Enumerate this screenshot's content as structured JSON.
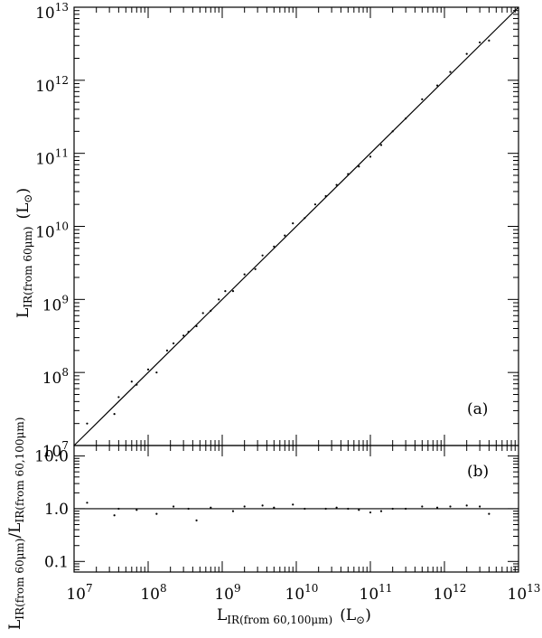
{
  "chart_data": [
    {
      "panel": "a",
      "type": "scatter",
      "tag": "(a)",
      "xscale": "log",
      "yscale": "log",
      "xlim": [
        10000000.0,
        10000000000000.0
      ],
      "ylim": [
        10000000.0,
        10000000000000.0
      ],
      "x_ticks_shown_on_shared_bottom_axis": true,
      "y_ticks": [
        {
          "value": 10000000.0,
          "base": "10",
          "exp": "7"
        },
        {
          "value": 100000000.0,
          "base": "10",
          "exp": "8"
        },
        {
          "value": 1000000000.0,
          "base": "10",
          "exp": "9"
        },
        {
          "value": 10000000000.0,
          "base": "10",
          "exp": "10"
        },
        {
          "value": 100000000000.0,
          "base": "10",
          "exp": "11"
        },
        {
          "value": 1000000000000.0,
          "base": "10",
          "exp": "12"
        },
        {
          "value": 10000000000000.0,
          "base": "10",
          "exp": "13"
        }
      ],
      "ylabel": {
        "main": "L",
        "sub": "IR(from 60μm)",
        "unit": "(L",
        "unit_sub": "⊙",
        "unit_close": ")"
      },
      "reference_line": {
        "kind": "one-to-one",
        "from": [
          10000000.0,
          10000000.0
        ],
        "to": [
          10000000000000.0,
          10000000000000.0
        ]
      },
      "grid": false,
      "points_approx": [
        [
          15000000.0,
          20000000.0
        ],
        [
          35000000.0,
          27000000.0
        ],
        [
          40000000.0,
          46000000.0
        ],
        [
          60000000.0,
          75000000.0
        ],
        [
          70000000.0,
          68000000.0
        ],
        [
          100000000.0,
          110000000.0
        ],
        [
          130000000.0,
          100000000.0
        ],
        [
          180000000.0,
          200000000.0
        ],
        [
          220000000.0,
          250000000.0
        ],
        [
          300000000.0,
          320000000.0
        ],
        [
          350000000.0,
          360000000.0
        ],
        [
          450000000.0,
          430000000.0
        ],
        [
          550000000.0,
          650000000.0
        ],
        [
          700000000.0,
          700000000.0
        ],
        [
          900000000.0,
          1000000000.0
        ],
        [
          1100000000.0,
          1300000000.0
        ],
        [
          1400000000.0,
          1300000000.0
        ],
        [
          2000000000.0,
          2200000000.0
        ],
        [
          2800000000.0,
          2600000000.0
        ],
        [
          3500000000.0,
          4000000000.0
        ],
        [
          5000000000.0,
          5300000000.0
        ],
        [
          7000000000.0,
          7500000000.0
        ],
        [
          9000000000.0,
          11000000000.0
        ],
        [
          13000000000.0,
          13000000000.0
        ],
        [
          18000000000.0,
          20000000000.0
        ],
        [
          25000000000.0,
          26000000000.0
        ],
        [
          35000000000.0,
          37000000000.0
        ],
        [
          50000000000.0,
          52000000000.0
        ],
        [
          70000000000.0,
          66000000000.0
        ],
        [
          100000000000.0,
          90000000000.0
        ],
        [
          140000000000.0,
          130000000000.0
        ],
        [
          200000000000.0,
          200000000000.0
        ],
        [
          300000000000.0,
          300000000000.0
        ],
        [
          500000000000.0,
          550000000000.0
        ],
        [
          800000000000.0,
          850000000000.0
        ],
        [
          1200000000000.0,
          1300000000000.0
        ],
        [
          2000000000000.0,
          2300000000000.0
        ],
        [
          3000000000000.0,
          3300000000000.0
        ],
        [
          4000000000000.0,
          3500000000000.0
        ]
      ]
    },
    {
      "panel": "b",
      "type": "scatter",
      "tag": "(b)",
      "xscale": "log",
      "yscale": "log",
      "xlim": [
        10000000.0,
        10000000000000.0
      ],
      "ylim": [
        0.063,
        15.8
      ],
      "x_ticks": [
        {
          "value": 10000000.0,
          "base": "10",
          "exp": "7"
        },
        {
          "value": 100000000.0,
          "base": "10",
          "exp": "8"
        },
        {
          "value": 1000000000.0,
          "base": "10",
          "exp": "9"
        },
        {
          "value": 10000000000.0,
          "base": "10",
          "exp": "10"
        },
        {
          "value": 100000000000.0,
          "base": "10",
          "exp": "11"
        },
        {
          "value": 1000000000000.0,
          "base": "10",
          "exp": "12"
        },
        {
          "value": 10000000000000.0,
          "base": "10",
          "exp": "13"
        }
      ],
      "y_ticks": [
        {
          "value": 0.1,
          "label": "0.1"
        },
        {
          "value": 1.0,
          "label": "1.0"
        },
        {
          "value": 10.0,
          "label": "10.0"
        }
      ],
      "xlabel": {
        "main": "L",
        "sub": "IR(from 60,100μm)",
        "unit": "(L",
        "unit_sub": "⊙",
        "unit_close": ")"
      },
      "ylabel": {
        "num": "L",
        "num_sub": "IR(from 60μm)",
        "slash": "/",
        "den": "L",
        "den_sub": "IR(from 60,100μm)"
      },
      "reference_line": {
        "kind": "horizontal",
        "y": 1.0
      },
      "grid": false,
      "points_approx": [
        [
          15000000.0,
          1.3
        ],
        [
          35000000.0,
          0.75
        ],
        [
          40000000.0,
          1.0
        ],
        [
          70000000.0,
          0.95
        ],
        [
          130000000.0,
          0.8
        ],
        [
          220000000.0,
          1.1
        ],
        [
          350000000.0,
          1.0
        ],
        [
          450000000.0,
          0.6
        ],
        [
          700000000.0,
          1.05
        ],
        [
          1400000000.0,
          0.9
        ],
        [
          2000000000.0,
          1.1
        ],
        [
          3500000000.0,
          1.15
        ],
        [
          5000000000.0,
          1.05
        ],
        [
          9000000000.0,
          1.2
        ],
        [
          13000000000.0,
          1.0
        ],
        [
          25000000000.0,
          1.0
        ],
        [
          35000000000.0,
          1.05
        ],
        [
          50000000000.0,
          1.0
        ],
        [
          70000000000.0,
          0.95
        ],
        [
          100000000000.0,
          0.85
        ],
        [
          140000000000.0,
          0.9
        ],
        [
          200000000000.0,
          1.0
        ],
        [
          300000000000.0,
          1.0
        ],
        [
          500000000000.0,
          1.1
        ],
        [
          800000000000.0,
          1.05
        ],
        [
          1200000000000.0,
          1.1
        ],
        [
          2000000000000.0,
          1.15
        ],
        [
          3000000000000.0,
          1.1
        ],
        [
          4000000000000.0,
          0.8
        ]
      ]
    }
  ]
}
